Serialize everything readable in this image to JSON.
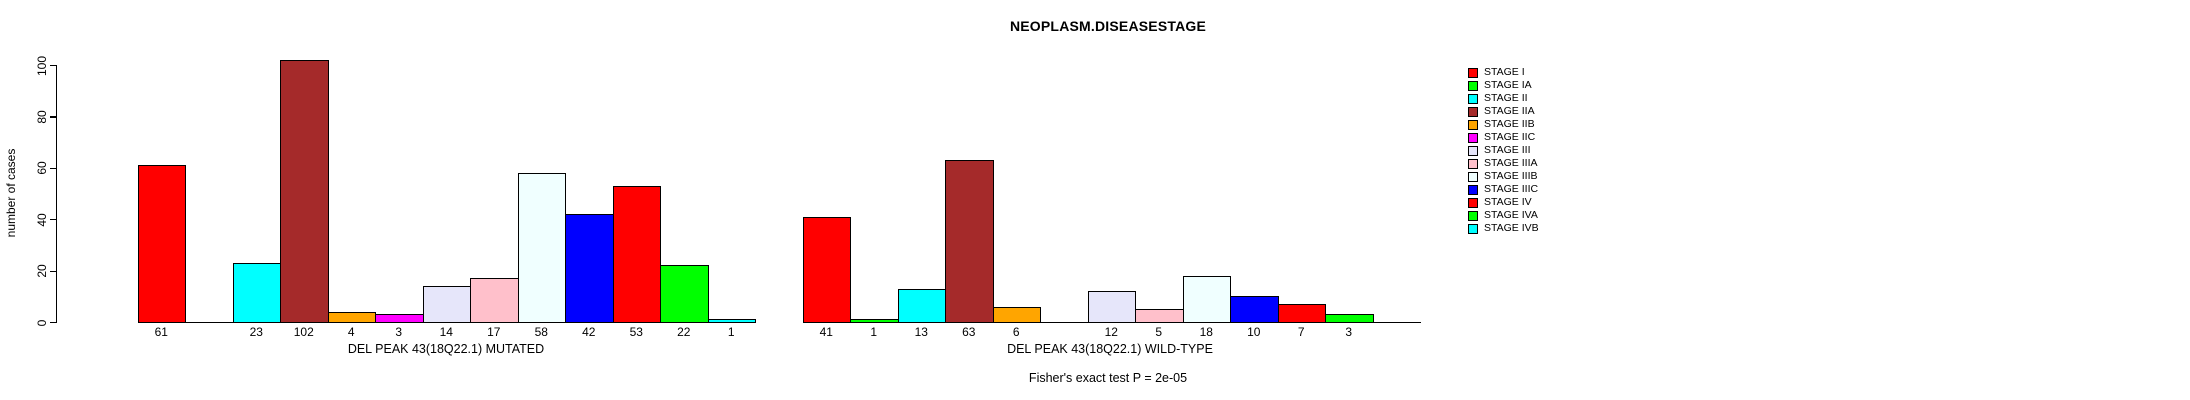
{
  "chart_data": {
    "type": "bar",
    "title": "NEOPLASM.DISEASESTAGE",
    "ylabel": "number of cases",
    "yticks": [
      0,
      20,
      40,
      60,
      80,
      100
    ],
    "ylim": [
      0,
      109
    ],
    "grid": false,
    "legend_position": "right",
    "bar_value_labels_shown": true,
    "zero_bars_drawn_as_baseline_segments": true,
    "categories": [
      "STAGE I",
      "STAGE IA",
      "STAGE II",
      "STAGE IIA",
      "STAGE IIB",
      "STAGE IIC",
      "STAGE III",
      "STAGE IIIA",
      "STAGE IIIB",
      "STAGE IIIC",
      "STAGE IV",
      "STAGE IVA",
      "STAGE IVB"
    ],
    "colors": [
      "#FF0000",
      "#00FF00",
      "#00FFFF",
      "#A52A2A",
      "#FFA500",
      "#FF00FF",
      "#E6E6FA",
      "#FFC0CB",
      "#F0FFFF",
      "#0000FF",
      "#FF0000",
      "#00FF00",
      "#00FFFF"
    ],
    "series": [
      {
        "name": "DEL PEAK 43(18Q22.1) MUTATED",
        "values": [
          61,
          0,
          23,
          102,
          4,
          3,
          14,
          17,
          58,
          42,
          53,
          22,
          1
        ]
      },
      {
        "name": "DEL PEAK 43(18Q22.1) WILD-TYPE",
        "values": [
          41,
          1,
          13,
          63,
          6,
          0,
          12,
          5,
          18,
          10,
          7,
          3,
          0
        ]
      }
    ],
    "footnote": "Fisher's exact test P = 2e-05",
    "axis_color": "#000000",
    "bar_border_color": "#000000"
  }
}
